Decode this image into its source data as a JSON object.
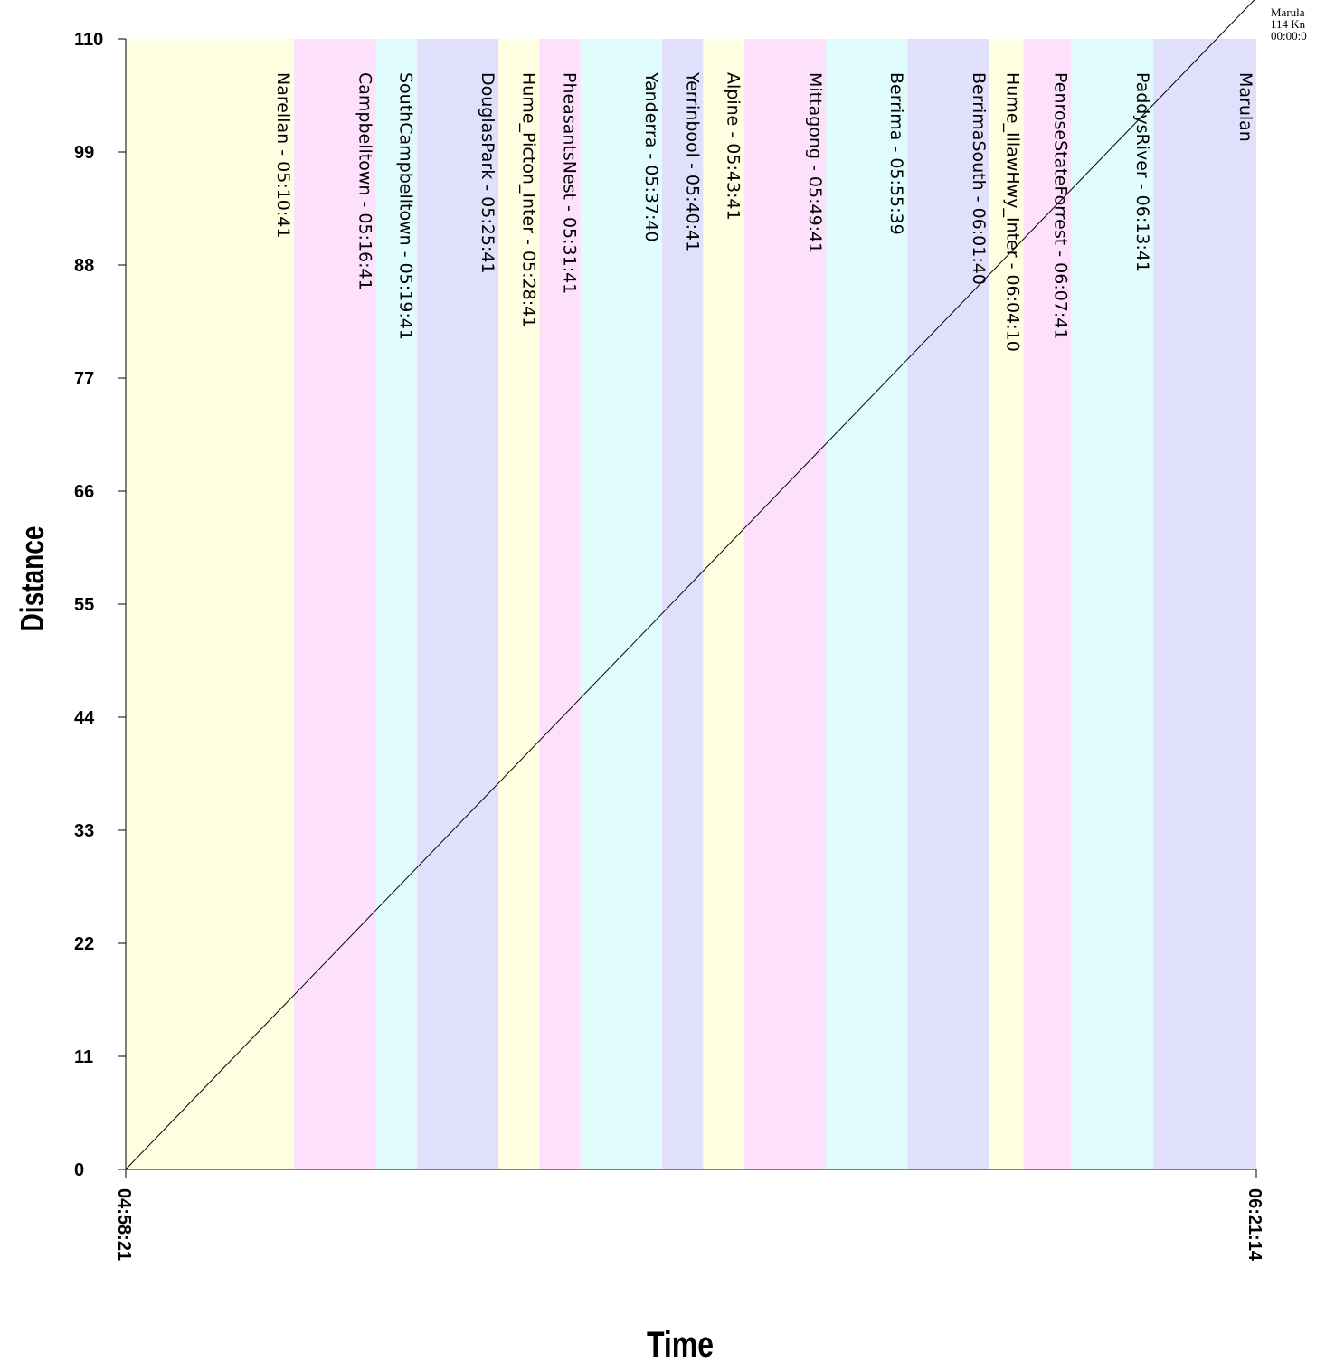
{
  "chart_data": {
    "type": "line",
    "title": "",
    "xlabel": "Time",
    "ylabel": "Distance",
    "x_range": [
      "04:58:21",
      "06:21:14"
    ],
    "ylim": [
      0,
      110
    ],
    "y_ticks": [
      0,
      11,
      22,
      33,
      44,
      55,
      66,
      77,
      88,
      99,
      110
    ],
    "x_tick_labels": [
      "04:58:21",
      "06:21:14"
    ],
    "grid": false,
    "bands": [
      {
        "start": "04:58:21",
        "end": "05:10:41",
        "color": "#fefee0"
      },
      {
        "start": "05:10:41",
        "end": "05:16:41",
        "color": "#fce0fc"
      },
      {
        "start": "05:16:41",
        "end": "05:19:41",
        "color": "#e0fcfc"
      },
      {
        "start": "05:19:41",
        "end": "05:25:41",
        "color": "#e0e0fc"
      },
      {
        "start": "05:25:41",
        "end": "05:28:41",
        "color": "#fefee0"
      },
      {
        "start": "05:28:41",
        "end": "05:31:41",
        "color": "#fce0fc"
      },
      {
        "start": "05:31:41",
        "end": "05:37:40",
        "color": "#e0fcfc"
      },
      {
        "start": "05:37:40",
        "end": "05:40:41",
        "color": "#e0e0fc"
      },
      {
        "start": "05:40:41",
        "end": "05:43:41",
        "color": "#fefee0"
      },
      {
        "start": "05:43:41",
        "end": "05:49:41",
        "color": "#fce0fc"
      },
      {
        "start": "05:49:41",
        "end": "05:55:39",
        "color": "#e0fcfc"
      },
      {
        "start": "05:55:39",
        "end": "06:01:40",
        "color": "#e0e0fc"
      },
      {
        "start": "06:01:40",
        "end": "06:04:10",
        "color": "#fefee0"
      },
      {
        "start": "06:04:10",
        "end": "06:07:41",
        "color": "#fce0fc"
      },
      {
        "start": "06:07:41",
        "end": "06:13:41",
        "color": "#e0fcfc"
      },
      {
        "start": "06:13:41",
        "end": "06:21:14",
        "color": "#e0e0fc"
      }
    ],
    "stations": [
      {
        "label": "Narellan - 05:10:41",
        "time": "05:10:41"
      },
      {
        "label": "Campbelltown - 05:16:41",
        "time": "05:16:41"
      },
      {
        "label": "SouthCampbelltown - 05:19:41",
        "time": "05:19:41"
      },
      {
        "label": "DouglasPark - 05:25:41",
        "time": "05:25:41"
      },
      {
        "label": "Hume_Picton_Inter - 05:28:41",
        "time": "05:28:41"
      },
      {
        "label": "PheasantsNest - 05:31:41",
        "time": "05:31:41"
      },
      {
        "label": "Yanderra - 05:37:40",
        "time": "05:37:40"
      },
      {
        "label": "Yerrinbool - 05:40:41",
        "time": "05:40:41"
      },
      {
        "label": "Alpine - 05:43:41",
        "time": "05:43:41"
      },
      {
        "label": "Mittagong - 05:49:41",
        "time": "05:49:41"
      },
      {
        "label": "Berrima - 05:55:39",
        "time": "05:55:39"
      },
      {
        "label": "BerrimaSouth - 06:01:40",
        "time": "06:01:40"
      },
      {
        "label": "Hume_IllawHwy_Inter - 06:04:10",
        "time": "06:04:10"
      },
      {
        "label": "PenroseStateForrest - 06:07:41",
        "time": "06:07:41"
      },
      {
        "label": "PaddysRiver - 06:13:41",
        "time": "06:13:41"
      },
      {
        "label": "Marulan",
        "time": "06:21:14"
      }
    ],
    "series": [
      {
        "x": [
          "04:58:21",
          "06:21:14"
        ],
        "y": [
          0,
          114
        ],
        "color": "#000000"
      }
    ],
    "annotation": {
      "lines": [
        "Marula",
        "114 Kn",
        "00:00:0"
      ]
    }
  }
}
